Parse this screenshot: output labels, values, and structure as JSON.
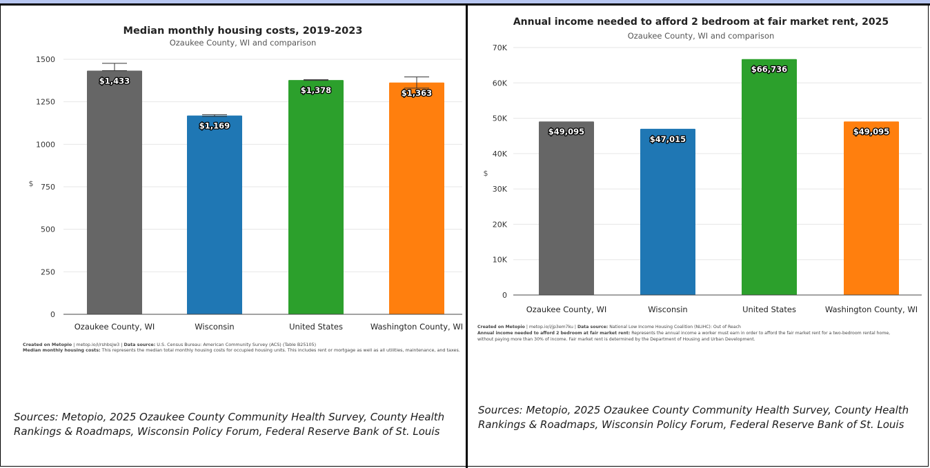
{
  "panels": [
    {
      "source": "Sources: Metopio, 2025 Ozaukee County Community Health Survey, County Health Rankings & Roadmaps, Wisconsin Policy Forum, Federal Reserve Bank of St. Louis",
      "footnote": {
        "line1_bold_a": "Created on Metopio",
        "line1_a": " | metop.io/i/rshbsjw3 | ",
        "line1_bold_b": "Data source:",
        "line1_b": " U.S. Census Bureau: American Community Survey (ACS) (Table B25105)",
        "line2_bold": "Median monthly housing costs:",
        "line2": " This represents the median total monthly housing costs for occupied housing units. This includes rent or mortgage as well as all utilities, maintenance, and taxes.",
        "line3": ""
      }
    },
    {
      "source": "Sources: Metopio, 2025 Ozaukee County Community Health Survey, County Health Rankings & Roadmaps, Wisconsin Policy Forum, Federal Reserve Bank of St. Louis",
      "footnote": {
        "line1_bold_a": "Created on Metopio",
        "line1_a": " | metop.io/i/jp3em7ku | ",
        "line1_bold_b": "Data source:",
        "line1_b": " National Low Income Housing Coalition (NLIHC): Out of Reach",
        "line2_bold": "Annual income needed to afford 2 bedroom at fair market rent:",
        "line2": " Represents the annual income a worker must earn in order to afford the fair market rent for a two-bedroom rental home,",
        "line3": "without paying more than 30% of income. Fair market rent is determined by the Department of Housing and Urban Development."
      }
    }
  ],
  "chart_data": [
    {
      "type": "bar",
      "title": "Median monthly housing costs, 2019-2023",
      "subtitle": "Ozaukee County, WI and comparison",
      "ylabel": "$",
      "xlabel": "",
      "ylim": [
        0,
        1500
      ],
      "yticks": [
        0,
        250,
        500,
        750,
        1000,
        1250,
        1500
      ],
      "ytick_labels": [
        "0",
        "250",
        "500",
        "750",
        "1000",
        "1250",
        "1500"
      ],
      "categories": [
        "Ozaukee County, WI",
        "Wisconsin",
        "United States",
        "Washington County, WI"
      ],
      "values": [
        1433,
        1169,
        1378,
        1363
      ],
      "value_labels": [
        "$1,433",
        "$1,169",
        "$1,378",
        "$1,363"
      ],
      "error_bars": [
        [
          1433,
          1476
        ],
        [
          1164,
          1174
        ],
        [
          1376,
          1380
        ],
        [
          1330,
          1396
        ]
      ],
      "colors": [
        "#666666",
        "#1f77b4",
        "#2ca02c",
        "#ff7f0e"
      ],
      "grid": true,
      "legend": "none"
    },
    {
      "type": "bar",
      "title": "Annual income needed to afford 2 bedroom at fair market rent, 2025",
      "subtitle": "Ozaukee County, WI and comparison",
      "ylabel": "$",
      "xlabel": "",
      "ylim": [
        0,
        70000
      ],
      "yticks": [
        0,
        10000,
        20000,
        30000,
        40000,
        50000,
        60000,
        70000
      ],
      "ytick_labels": [
        "0",
        "10K",
        "20K",
        "30K",
        "40K",
        "50K",
        "60K",
        "70K"
      ],
      "categories": [
        "Ozaukee County, WI",
        "Wisconsin",
        "United States",
        "Washington County, WI"
      ],
      "values": [
        49095,
        47015,
        66736,
        49095
      ],
      "value_labels": [
        "$49,095",
        "$47,015",
        "$66,736",
        "$49,095"
      ],
      "colors": [
        "#666666",
        "#1f77b4",
        "#2ca02c",
        "#ff7f0e"
      ],
      "grid": true,
      "legend": "none"
    }
  ]
}
